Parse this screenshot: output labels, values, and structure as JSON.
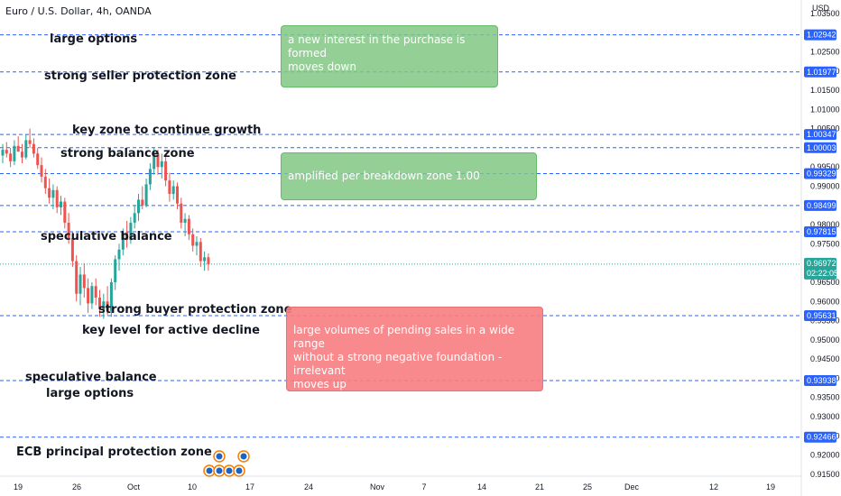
{
  "title": "Euro / U.S. Dollar, 4h, OANDA",
  "currency_label": "USD",
  "countdown": "02:22:05",
  "colors": {
    "up": "#26a69a",
    "down": "#ef5350",
    "level_line": "#2962ff",
    "badge": "#2962ff",
    "last_price_badge": "#26a69a",
    "green_box": "#81c784",
    "red_box": "#f77c80"
  },
  "annotations": [
    {
      "id": "large-options-top",
      "text": "large options"
    },
    {
      "id": "strong-seller",
      "text": "strong seller protection zone"
    },
    {
      "id": "key-zone-growth",
      "text": "key zone to continue growth"
    },
    {
      "id": "strong-balance",
      "text": "strong balance zone"
    },
    {
      "id": "speculative-balance-1",
      "text": "speculative balance"
    },
    {
      "id": "strong-buyer",
      "text": "strong buyer protection zone"
    },
    {
      "id": "key-level-decline",
      "text": "key level for active decline"
    },
    {
      "id": "speculative-balance-2",
      "text": "speculative balance"
    },
    {
      "id": "large-options-bottom",
      "text": "large options"
    },
    {
      "id": "ecb",
      "text": "ECB principal protection zone"
    }
  ],
  "boxes": {
    "box1": [
      "a new  interest in the purchase is formed",
      "moves down"
    ],
    "box2": [
      "amplified per breakdown zone 1.00"
    ],
    "box3": [
      "large volumes of pending sales in a wide range",
      "without a strong negative foundation - irrelevant",
      "moves up"
    ]
  },
  "chart_data": {
    "type": "candlestick",
    "title": "Euro / U.S. Dollar, 4h, OANDA",
    "y_axis_unit": "USD",
    "ylim": [
      0.9145,
      1.0385
    ],
    "y_ticks": [
      1.035,
      1.025,
      1.02,
      1.015,
      1.01,
      1.005,
      0.995,
      0.99,
      0.98,
      0.975,
      0.965,
      0.96,
      0.955,
      0.95,
      0.945,
      0.94,
      0.935,
      0.93,
      0.925,
      0.92,
      0.915
    ],
    "y_tick_labels": [
      "1.03500",
      "1.02500",
      "1.02000",
      "1.01500",
      "1.01000",
      "1.00500",
      "0.99500",
      "0.99000",
      "0.98000",
      "0.97500",
      "0.96500",
      "0.96000",
      "0.95500",
      "0.95000",
      "0.94500",
      "0.94000",
      "0.93500",
      "0.93000",
      "0.92500",
      "0.92000",
      "0.91500"
    ],
    "x_tick_labels": [
      "19",
      "26",
      "Oct",
      "10",
      "17",
      "24",
      "Nov",
      "7",
      "14",
      "21",
      "25",
      "Dec",
      "12",
      "19"
    ],
    "levels": [
      1.02942,
      1.01977,
      1.00347,
      1.00003,
      0.99329,
      0.98499,
      0.97815,
      0.95631,
      0.93938,
      0.92466
    ],
    "level_labels": [
      "1.02942",
      "1.01977",
      "1.00347",
      "1.00003",
      "0.99329",
      "0.98499",
      "0.97815",
      "0.95631",
      "0.93938",
      "0.92466"
    ],
    "last_price": 0.96972,
    "last_price_label": "0.96972",
    "candles": [
      [
        0.998,
        1.001,
        0.996,
        0.9995
      ],
      [
        0.9995,
        1.0015,
        0.9975,
        0.9985
      ],
      [
        0.9985,
        1.0,
        0.995,
        0.9965
      ],
      [
        0.9965,
        1.002,
        0.9955,
        1.0005
      ],
      [
        1.0005,
        1.003,
        0.999,
        0.999
      ],
      [
        0.999,
        1.001,
        0.996,
        0.9975
      ],
      [
        0.9975,
        1.0035,
        0.997,
        1.002
      ],
      [
        1.002,
        1.005,
        1.0,
        1.001
      ],
      [
        1.001,
        1.0025,
        0.9975,
        0.9985
      ],
      [
        0.9985,
        1.0,
        0.9945,
        0.9955
      ],
      [
        0.9955,
        0.9975,
        0.991,
        0.9925
      ],
      [
        0.9925,
        0.9945,
        0.988,
        0.9895
      ],
      [
        0.9895,
        0.992,
        0.9855,
        0.987
      ],
      [
        0.987,
        0.9905,
        0.984,
        0.989
      ],
      [
        0.989,
        0.99,
        0.983,
        0.9845
      ],
      [
        0.9845,
        0.9875,
        0.9825,
        0.986
      ],
      [
        0.986,
        0.987,
        0.979,
        0.9805
      ],
      [
        0.9805,
        0.983,
        0.975,
        0.9765
      ],
      [
        0.9765,
        0.978,
        0.969,
        0.9705
      ],
      [
        0.9705,
        0.972,
        0.96,
        0.962
      ],
      [
        0.962,
        0.969,
        0.959,
        0.967
      ],
      [
        0.967,
        0.97,
        0.961,
        0.9635
      ],
      [
        0.9635,
        0.966,
        0.957,
        0.9595
      ],
      [
        0.9595,
        0.965,
        0.958,
        0.964
      ],
      [
        0.964,
        0.966,
        0.959,
        0.961
      ],
      [
        0.961,
        0.963,
        0.956,
        0.958
      ],
      [
        0.958,
        0.962,
        0.9555,
        0.96
      ],
      [
        0.96,
        0.964,
        0.9565,
        0.9575
      ],
      [
        0.9575,
        0.966,
        0.956,
        0.965
      ],
      [
        0.965,
        0.972,
        0.963,
        0.971
      ],
      [
        0.971,
        0.975,
        0.968,
        0.9735
      ],
      [
        0.9735,
        0.979,
        0.972,
        0.978
      ],
      [
        0.978,
        0.981,
        0.974,
        0.976
      ],
      [
        0.976,
        0.982,
        0.975,
        0.9805
      ],
      [
        0.9805,
        0.985,
        0.979,
        0.983
      ],
      [
        0.983,
        0.988,
        0.981,
        0.9865
      ],
      [
        0.9865,
        0.99,
        0.984,
        0.985
      ],
      [
        0.985,
        0.992,
        0.9845,
        0.9905
      ],
      [
        0.9905,
        0.996,
        0.989,
        0.9945
      ],
      [
        0.9945,
        1.0,
        0.993,
        0.9985
      ],
      [
        0.9985,
        0.9995,
        0.993,
        0.995
      ],
      [
        0.995,
        0.9985,
        0.992,
        0.9965
      ],
      [
        0.9965,
        0.998,
        0.99,
        0.9915
      ],
      [
        0.9915,
        0.9935,
        0.986,
        0.988
      ],
      [
        0.988,
        0.9915,
        0.9865,
        0.99
      ],
      [
        0.99,
        0.991,
        0.984,
        0.9855
      ],
      [
        0.9855,
        0.987,
        0.979,
        0.9805
      ],
      [
        0.9805,
        0.983,
        0.977,
        0.9815
      ],
      [
        0.9815,
        0.9825,
        0.976,
        0.9775
      ],
      [
        0.9775,
        0.979,
        0.973,
        0.9745
      ],
      [
        0.9745,
        0.977,
        0.972,
        0.9755
      ],
      [
        0.9755,
        0.9765,
        0.969,
        0.9705
      ],
      [
        0.9705,
        0.973,
        0.968,
        0.9715
      ],
      [
        0.9715,
        0.9725,
        0.968,
        0.9697
      ]
    ]
  }
}
